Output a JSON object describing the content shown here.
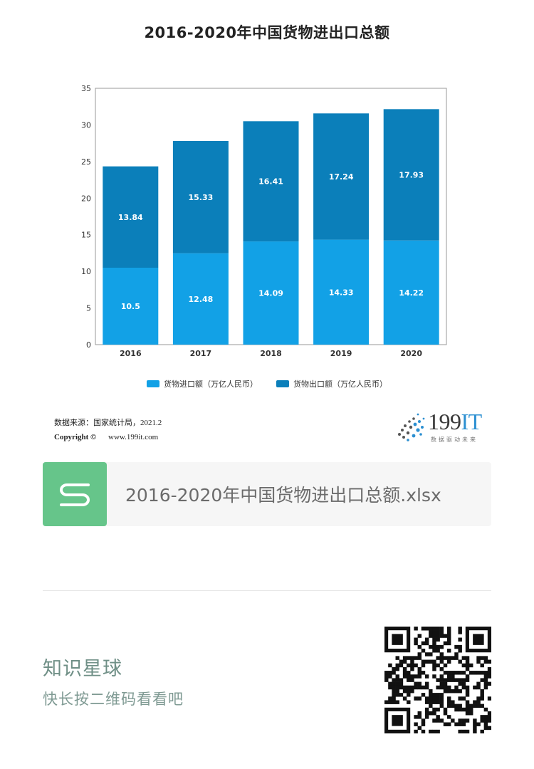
{
  "chart_data": {
    "type": "bar",
    "stacked": true,
    "title": "2016-2020年中国货物进出口总额",
    "categories": [
      "2016",
      "2017",
      "2018",
      "2019",
      "2020"
    ],
    "series": [
      {
        "name": "货物进口额（万亿人民币）",
        "values": [
          10.5,
          12.48,
          14.09,
          14.33,
          14.22
        ],
        "color": "#12a1e6"
      },
      {
        "name": "货物出口额（万亿人民币）",
        "values": [
          13.84,
          15.33,
          16.41,
          17.24,
          17.93
        ],
        "color": "#0b7fba"
      }
    ],
    "ylim": [
      0,
      35
    ],
    "yticks": [
      "0",
      "5",
      "10",
      "15",
      "20",
      "25",
      "30",
      "35"
    ],
    "xlabel": "",
    "ylabel": "",
    "grid": false,
    "legend": "bottom"
  },
  "source": {
    "line1": "数据来源：国家统计局，2021.2",
    "copyright_label": "Copyright ©",
    "site": "www.199it.com"
  },
  "logo": {
    "name_digits": "199",
    "name_it": "IT",
    "slogan": "数据驱动未来"
  },
  "file": {
    "icon_letter": "S",
    "name": "2016-2020年中国货物进出口总额.xlsx"
  },
  "footer": {
    "title": "知识星球",
    "subtitle": "快长按二维码看看吧"
  },
  "colors": {
    "import": "#12a1e6",
    "export": "#0b7fba",
    "file_icon": "#66c58a",
    "footer_text": "#6f8f86"
  },
  "icons": {
    "file": "spreadsheet-s-icon",
    "logo_mark": "dot-burst-logo-icon",
    "qr": "qr-code-icon"
  }
}
